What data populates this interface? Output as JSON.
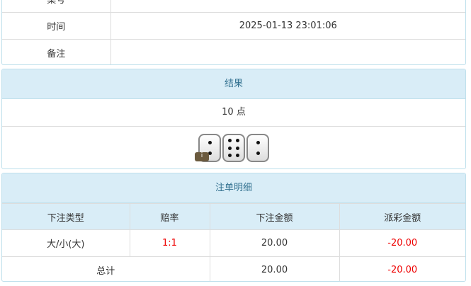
{
  "info": {
    "rows": [
      {
        "label": "桌号",
        "value": ""
      },
      {
        "label": "时间",
        "value": "2025-01-13 23:01:06"
      },
      {
        "label": "备注",
        "value": ""
      }
    ]
  },
  "result": {
    "title": "结果",
    "points": "10 点",
    "dice": [
      2,
      6,
      2
    ],
    "info_badge": "i"
  },
  "bets": {
    "title": "注单明细",
    "columns": [
      "下注类型",
      "赔率",
      "下注金额",
      "派彩金额"
    ],
    "rows": [
      {
        "type": "大/小(大)",
        "odds": "1:1",
        "amount": "20.00",
        "payout": "-20.00"
      }
    ],
    "total": {
      "label": "总计",
      "amount": "20.00",
      "payout": "-20.00"
    }
  },
  "colors": {
    "header_bg": "#d9edf7",
    "negative": "#e00000"
  }
}
